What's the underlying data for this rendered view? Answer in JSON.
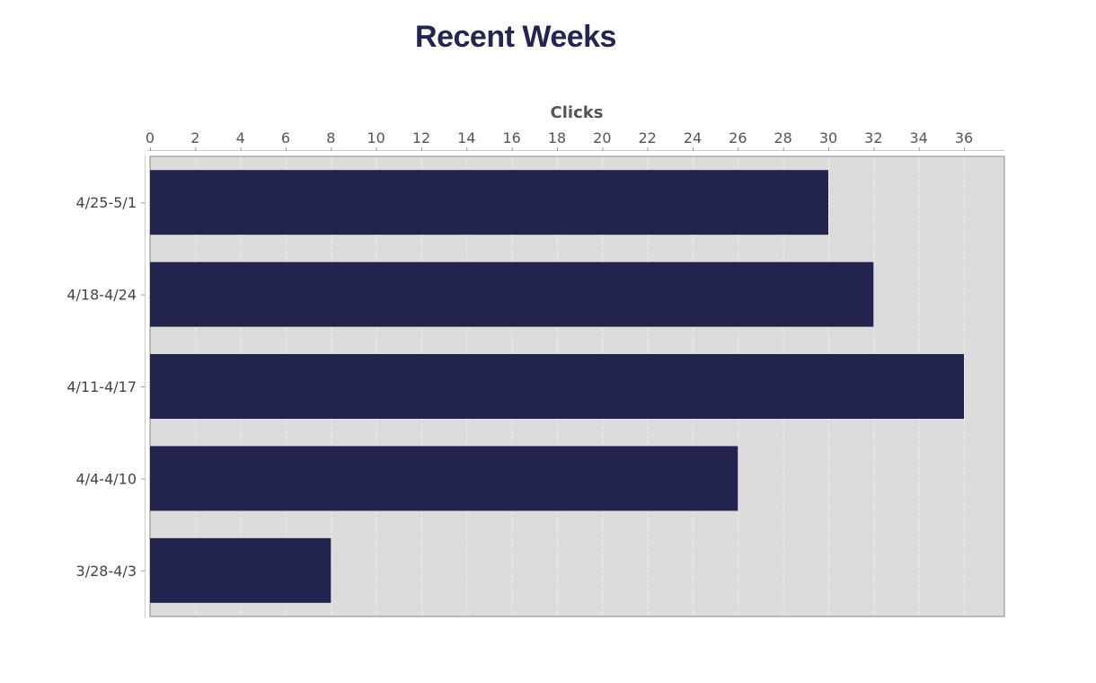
{
  "chart_data": {
    "type": "bar",
    "orientation": "horizontal",
    "title": "Recent Weeks",
    "xlabel": "Clicks",
    "ylabel": "",
    "categories": [
      "4/25-5/1",
      "4/18-4/24",
      "4/11-4/17",
      "4/4-4/10",
      "3/28-4/3"
    ],
    "values": [
      30,
      32,
      36,
      26,
      8
    ],
    "xlim": [
      0,
      38
    ],
    "xticks": [
      0,
      2,
      4,
      6,
      8,
      10,
      12,
      14,
      16,
      18,
      20,
      22,
      24,
      26,
      28,
      30,
      32,
      34,
      36
    ],
    "axis_position": "top",
    "grid": true,
    "legend": "none",
    "colors": {
      "bar": "#23244e",
      "plot_background": "#dcdcdc",
      "title": "#23264e",
      "grid": "#f2f2f2"
    }
  }
}
